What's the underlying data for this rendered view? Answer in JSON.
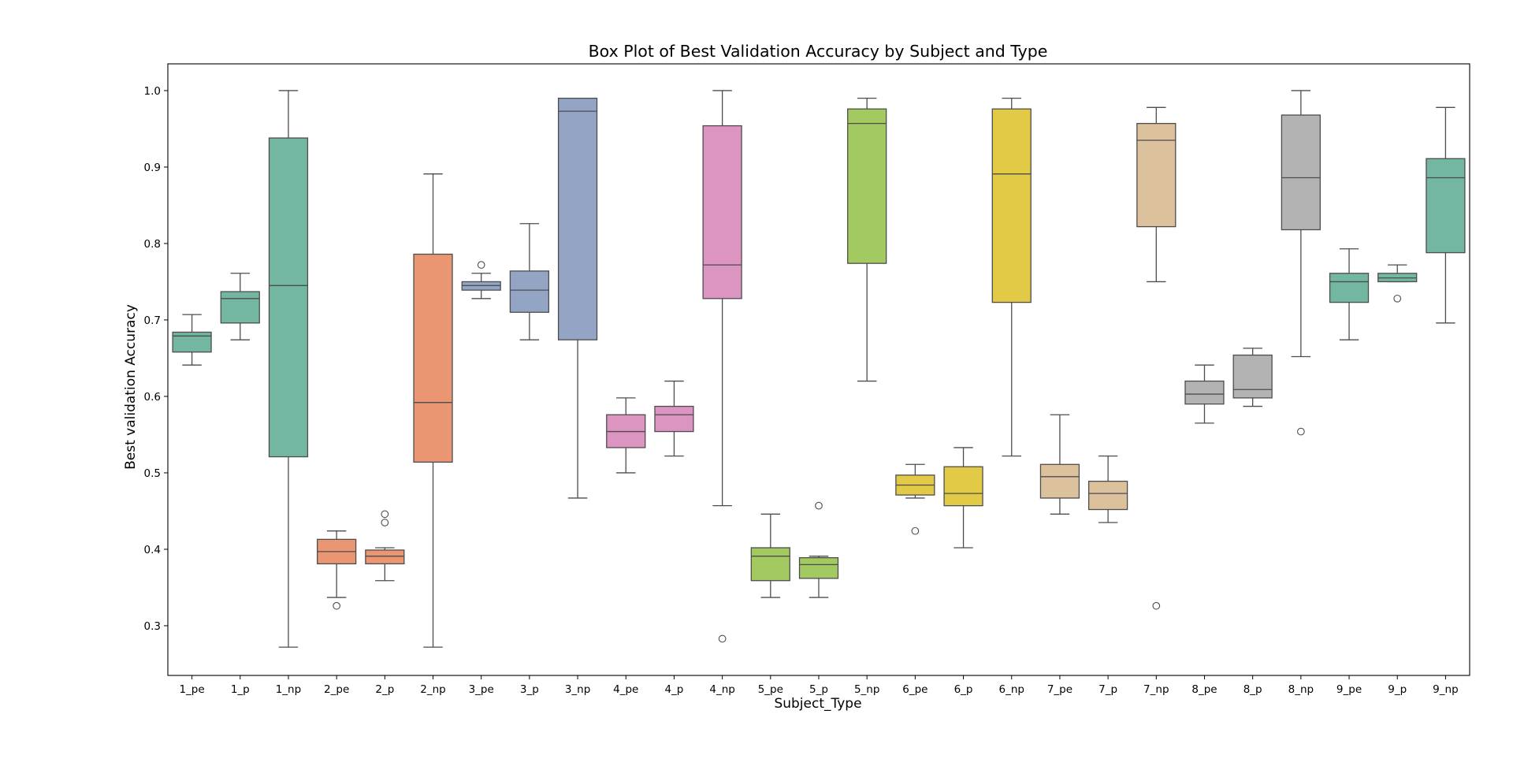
{
  "chart_data": {
    "type": "box",
    "title": "Box Plot of Best Validation Accuracy by Subject and Type",
    "xlabel": "Subject_Type",
    "ylabel": "Best validation Accuracy",
    "ylim": [
      0.235,
      1.035
    ],
    "yticks": [
      0.3,
      0.4,
      0.5,
      0.6,
      0.7,
      0.8,
      0.9,
      1.0
    ],
    "ytick_labels": [
      "0.3",
      "0.4",
      "0.5",
      "0.6",
      "0.7",
      "0.8",
      "0.9",
      "1.0"
    ],
    "grid": false,
    "legend": "none",
    "categories": [
      "1_pe",
      "1_p",
      "1_np",
      "2_pe",
      "2_p",
      "2_np",
      "3_pe",
      "3_p",
      "3_np",
      "4_pe",
      "4_p",
      "4_np",
      "5_pe",
      "5_p",
      "5_np",
      "6_pe",
      "6_p",
      "6_np",
      "7_pe",
      "7_p",
      "7_np",
      "8_pe",
      "8_p",
      "8_np",
      "9_pe",
      "9_p",
      "9_np"
    ],
    "subject_colors": {
      "1": "#73b6a1",
      "2": "#ea9673",
      "3": "#94a4c5",
      "4": "#dc94c0",
      "5": "#a3c961",
      "6": "#e2c946",
      "7": "#dbc19c",
      "8": "#b3b3b3",
      "9": "#73b6a1"
    },
    "boxes": [
      {
        "label": "1_pe",
        "subject": "1",
        "whislo": 0.641,
        "q1": 0.658,
        "med": 0.679,
        "q3": 0.684,
        "whishi": 0.707,
        "fliers": []
      },
      {
        "label": "1_p",
        "subject": "1",
        "whislo": 0.674,
        "q1": 0.696,
        "med": 0.728,
        "q3": 0.737,
        "whishi": 0.761,
        "fliers": []
      },
      {
        "label": "1_np",
        "subject": "1",
        "whislo": 0.272,
        "q1": 0.521,
        "med": 0.745,
        "q3": 0.938,
        "whishi": 1.0,
        "fliers": []
      },
      {
        "label": "2_pe",
        "subject": "2",
        "whislo": 0.337,
        "q1": 0.381,
        "med": 0.397,
        "q3": 0.413,
        "whishi": 0.424,
        "fliers": [
          0.326
        ]
      },
      {
        "label": "2_p",
        "subject": "2",
        "whislo": 0.359,
        "q1": 0.381,
        "med": 0.391,
        "q3": 0.399,
        "whishi": 0.402,
        "fliers": [
          0.435,
          0.446
        ]
      },
      {
        "label": "2_np",
        "subject": "2",
        "whislo": 0.272,
        "q1": 0.514,
        "med": 0.592,
        "q3": 0.786,
        "whishi": 0.891,
        "fliers": []
      },
      {
        "label": "3_pe",
        "subject": "3",
        "whislo": 0.728,
        "q1": 0.739,
        "med": 0.745,
        "q3": 0.75,
        "whishi": 0.761,
        "fliers": [
          0.772
        ]
      },
      {
        "label": "3_p",
        "subject": "3",
        "whislo": 0.674,
        "q1": 0.71,
        "med": 0.739,
        "q3": 0.764,
        "whishi": 0.826,
        "fliers": []
      },
      {
        "label": "3_np",
        "subject": "3",
        "whislo": 0.467,
        "q1": 0.674,
        "med": 0.973,
        "q3": 0.99,
        "whishi": 0.99,
        "fliers": []
      },
      {
        "label": "4_pe",
        "subject": "4",
        "whislo": 0.5,
        "q1": 0.533,
        "med": 0.554,
        "q3": 0.576,
        "whishi": 0.598,
        "fliers": []
      },
      {
        "label": "4_p",
        "subject": "4",
        "whislo": 0.522,
        "q1": 0.554,
        "med": 0.576,
        "q3": 0.587,
        "whishi": 0.62,
        "fliers": []
      },
      {
        "label": "4_np",
        "subject": "4",
        "whislo": 0.457,
        "q1": 0.728,
        "med": 0.772,
        "q3": 0.954,
        "whishi": 1.0,
        "fliers": [
          0.283
        ]
      },
      {
        "label": "5_pe",
        "subject": "5",
        "whislo": 0.337,
        "q1": 0.359,
        "med": 0.391,
        "q3": 0.402,
        "whishi": 0.446,
        "fliers": []
      },
      {
        "label": "5_p",
        "subject": "5",
        "whislo": 0.337,
        "q1": 0.362,
        "med": 0.38,
        "q3": 0.389,
        "whishi": 0.391,
        "fliers": [
          0.457
        ]
      },
      {
        "label": "5_np",
        "subject": "5",
        "whislo": 0.62,
        "q1": 0.774,
        "med": 0.957,
        "q3": 0.976,
        "whishi": 0.99,
        "fliers": []
      },
      {
        "label": "6_pe",
        "subject": "6",
        "whislo": 0.467,
        "q1": 0.471,
        "med": 0.484,
        "q3": 0.497,
        "whishi": 0.511,
        "fliers": [
          0.424
        ]
      },
      {
        "label": "6_p",
        "subject": "6",
        "whislo": 0.402,
        "q1": 0.457,
        "med": 0.473,
        "q3": 0.508,
        "whishi": 0.533,
        "fliers": []
      },
      {
        "label": "6_np",
        "subject": "6",
        "whislo": 0.522,
        "q1": 0.723,
        "med": 0.891,
        "q3": 0.976,
        "whishi": 0.99,
        "fliers": []
      },
      {
        "label": "7_pe",
        "subject": "7",
        "whislo": 0.446,
        "q1": 0.467,
        "med": 0.495,
        "q3": 0.511,
        "whishi": 0.576,
        "fliers": []
      },
      {
        "label": "7_p",
        "subject": "7",
        "whislo": 0.435,
        "q1": 0.452,
        "med": 0.473,
        "q3": 0.489,
        "whishi": 0.522,
        "fliers": []
      },
      {
        "label": "7_np",
        "subject": "7",
        "whislo": 0.75,
        "q1": 0.822,
        "med": 0.935,
        "q3": 0.957,
        "whishi": 0.978,
        "fliers": [
          0.326
        ]
      },
      {
        "label": "8_pe",
        "subject": "8",
        "whislo": 0.565,
        "q1": 0.59,
        "med": 0.603,
        "q3": 0.62,
        "whishi": 0.641,
        "fliers": []
      },
      {
        "label": "8_p",
        "subject": "8",
        "whislo": 0.587,
        "q1": 0.598,
        "med": 0.609,
        "q3": 0.654,
        "whishi": 0.663,
        "fliers": []
      },
      {
        "label": "8_np",
        "subject": "8",
        "whislo": 0.652,
        "q1": 0.818,
        "med": 0.886,
        "q3": 0.968,
        "whishi": 1.0,
        "fliers": [
          0.554
        ]
      },
      {
        "label": "9_pe",
        "subject": "9",
        "whislo": 0.674,
        "q1": 0.723,
        "med": 0.75,
        "q3": 0.761,
        "whishi": 0.793,
        "fliers": []
      },
      {
        "label": "9_p",
        "subject": "9",
        "whislo": 0.75,
        "q1": 0.75,
        "med": 0.755,
        "q3": 0.761,
        "whishi": 0.772,
        "fliers": [
          0.728
        ]
      },
      {
        "label": "9_np",
        "subject": "9",
        "whislo": 0.696,
        "q1": 0.788,
        "med": 0.886,
        "q3": 0.911,
        "whishi": 0.978,
        "fliers": []
      }
    ]
  }
}
